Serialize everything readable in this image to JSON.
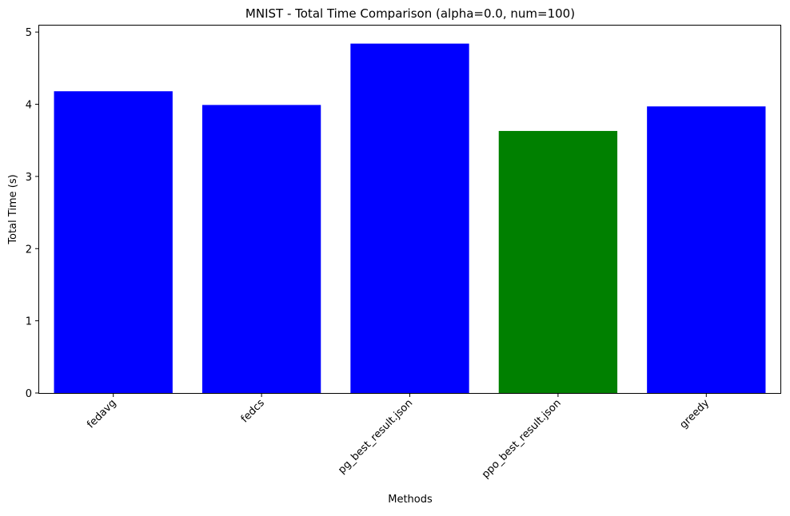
{
  "chart_data": {
    "type": "bar",
    "title": "MNIST - Total Time Comparison (alpha=0.0, num=100)",
    "xlabel": "Methods",
    "ylabel": "Total Time (s)",
    "categories": [
      "fedavg",
      "fedcs",
      "pg_best_result.json",
      "ppo_best_result.json",
      "greedy"
    ],
    "values": [
      4.18,
      3.99,
      4.84,
      3.63,
      3.97
    ],
    "bar_colors": [
      "#0000ff",
      "#0000ff",
      "#0000ff",
      "#008000",
      "#0000ff"
    ],
    "ylim": [
      0,
      5.09
    ],
    "yticks": [
      0,
      1,
      2,
      3,
      4,
      5
    ],
    "ytick_labels": [
      "0",
      "1",
      "2",
      "3",
      "4",
      "5"
    ],
    "xtick_rotation_deg": 45,
    "grid": false,
    "legend": "none"
  }
}
